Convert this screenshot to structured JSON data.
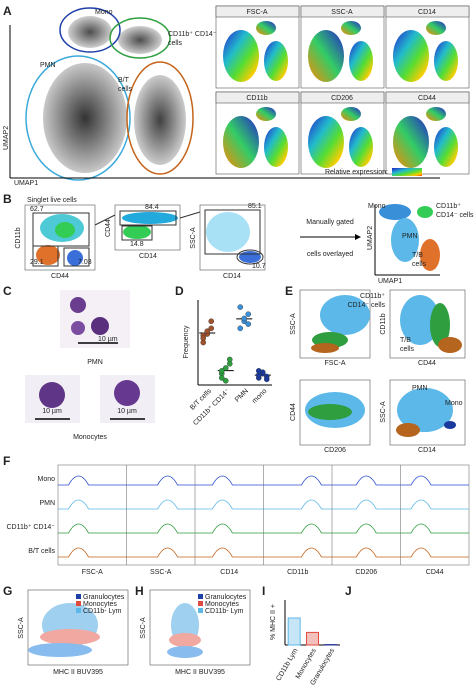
{
  "panel_labels": [
    "A",
    "B",
    "C",
    "D",
    "E",
    "F",
    "G",
    "H",
    "I",
    "J"
  ],
  "A": {
    "mono": "Mono",
    "pmn": "PMN",
    "cd11b": [
      "CD11b⁺ CD14⁻",
      "cells"
    ],
    "bt": [
      "B/T",
      "cells"
    ],
    "x_axis": "UMAP1",
    "y_axis": "UMAP2",
    "markers": [
      "FSC-A",
      "SSC-A",
      "CD14",
      "CD11b",
      "CD206",
      "CD44"
    ],
    "legend": "Relative expression:"
  },
  "B": {
    "title": "Singlet live cells",
    "axes": {
      "p1x": "CD44",
      "p1y": "CD11b",
      "p2x": "CD14",
      "p2y": "CD44",
      "p3x": "CD14",
      "p3y": "SSC-A"
    },
    "gates": [
      62.7,
      29.1,
      7.03,
      84.4,
      14.8,
      85.1,
      10.7
    ],
    "arrow_text": [
      "Manually gated",
      "cells overlayed"
    ],
    "overlay": {
      "mono": "Mono",
      "cd11b": [
        "CD11b⁺",
        "CD14⁻ cells"
      ],
      "pmn": "PMN",
      "tb": [
        "T/B",
        "cells"
      ],
      "x": "UMAP1",
      "y": "UMAP2"
    }
  },
  "C": {
    "scale": [
      "10 µm",
      "10 µm",
      "10 µm"
    ],
    "pmn": "PMN",
    "mono": "Monocytes"
  },
  "D": {
    "chart_data": {
      "type": "dot",
      "y_label": "Frequency",
      "categories": [
        "B/T cells",
        "CD11b⁺ CD14⁻",
        "PMN",
        "mono"
      ],
      "colors": [
        "#a0522d",
        "#2e9e3e",
        "#3a8fd9",
        "#1a3a9e"
      ],
      "ylim": [
        0,
        60
      ],
      "series": [
        [
          30,
          36,
          40,
          35,
          38,
          45,
          33
        ],
        [
          8,
          12,
          15,
          5,
          3,
          18,
          10
        ],
        [
          40,
          45,
          50,
          55,
          47,
          43
        ],
        [
          5,
          8,
          6,
          7,
          9,
          4,
          10
        ]
      ]
    }
  },
  "E": {
    "p1": {
      "x": "FSC-A",
      "y": "SSC-A"
    },
    "p2": {
      "x": "CD44",
      "y": "CD11b",
      "cd11b": [
        "CD11b⁺",
        "CD14⁻ cells"
      ],
      "bt": [
        "T/B",
        "cells"
      ]
    },
    "p3": {
      "x": "CD206",
      "y": "CD44"
    },
    "p4": {
      "x": "CD14",
      "y": "SSC-A",
      "pmn": "PMN",
      "mono": "Mono"
    }
  },
  "F": {
    "rows": [
      "Mono",
      "PMN",
      "CD11b⁺ CD14⁻",
      "B/T cells"
    ],
    "markers": [
      "FSC-A",
      "SSC-A",
      "CD14",
      "CD11b",
      "CD206",
      "CD44"
    ]
  },
  "G": {
    "legend": [
      "Granulocytes",
      "Monocytes",
      "CD11b- Lym"
    ],
    "x": "MHC II BUV395",
    "y": "SSC-A"
  },
  "H": {
    "legend": [
      "Granulocytes",
      "Monocytes",
      "CD11b- Lym"
    ],
    "x": "MHC II BUV395",
    "y": "SSC-A"
  },
  "I": {
    "chart_data": {
      "type": "bar",
      "y_label": "% MHC II +",
      "categories": [
        "CD11b Lym",
        "Monocytes",
        "Granulocytes"
      ],
      "values": [
        60,
        28,
        1
      ],
      "colors": [
        "#5bb8e8",
        "#e04b3f",
        "#2b3a9e"
      ],
      "ylim": [
        0,
        100
      ]
    }
  }
}
